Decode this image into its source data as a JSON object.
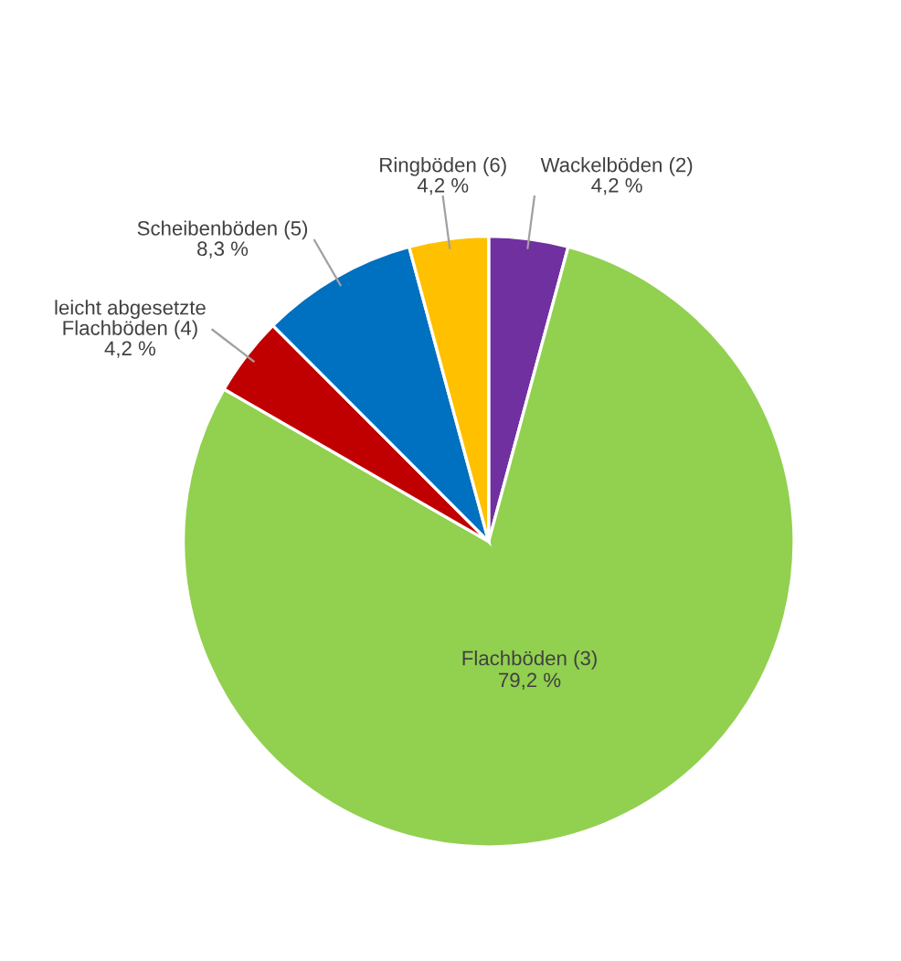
{
  "chart_data": {
    "type": "pie",
    "categories": [
      "Wackelböden (2)",
      "Flachböden (3)",
      "leicht abgesetzte\nFlachböden (4)",
      "Scheibenböden (5)",
      "Ringböden (6)"
    ],
    "values": [
      4.2,
      79.2,
      4.2,
      8.3,
      4.2
    ],
    "value_labels": [
      "4,2 %",
      "79,2 %",
      "4,2 %",
      "8,3 %",
      "4,2 %"
    ],
    "colors": [
      "#7030a0",
      "#92d050",
      "#c00000",
      "#0070c0",
      "#ffc000"
    ]
  }
}
